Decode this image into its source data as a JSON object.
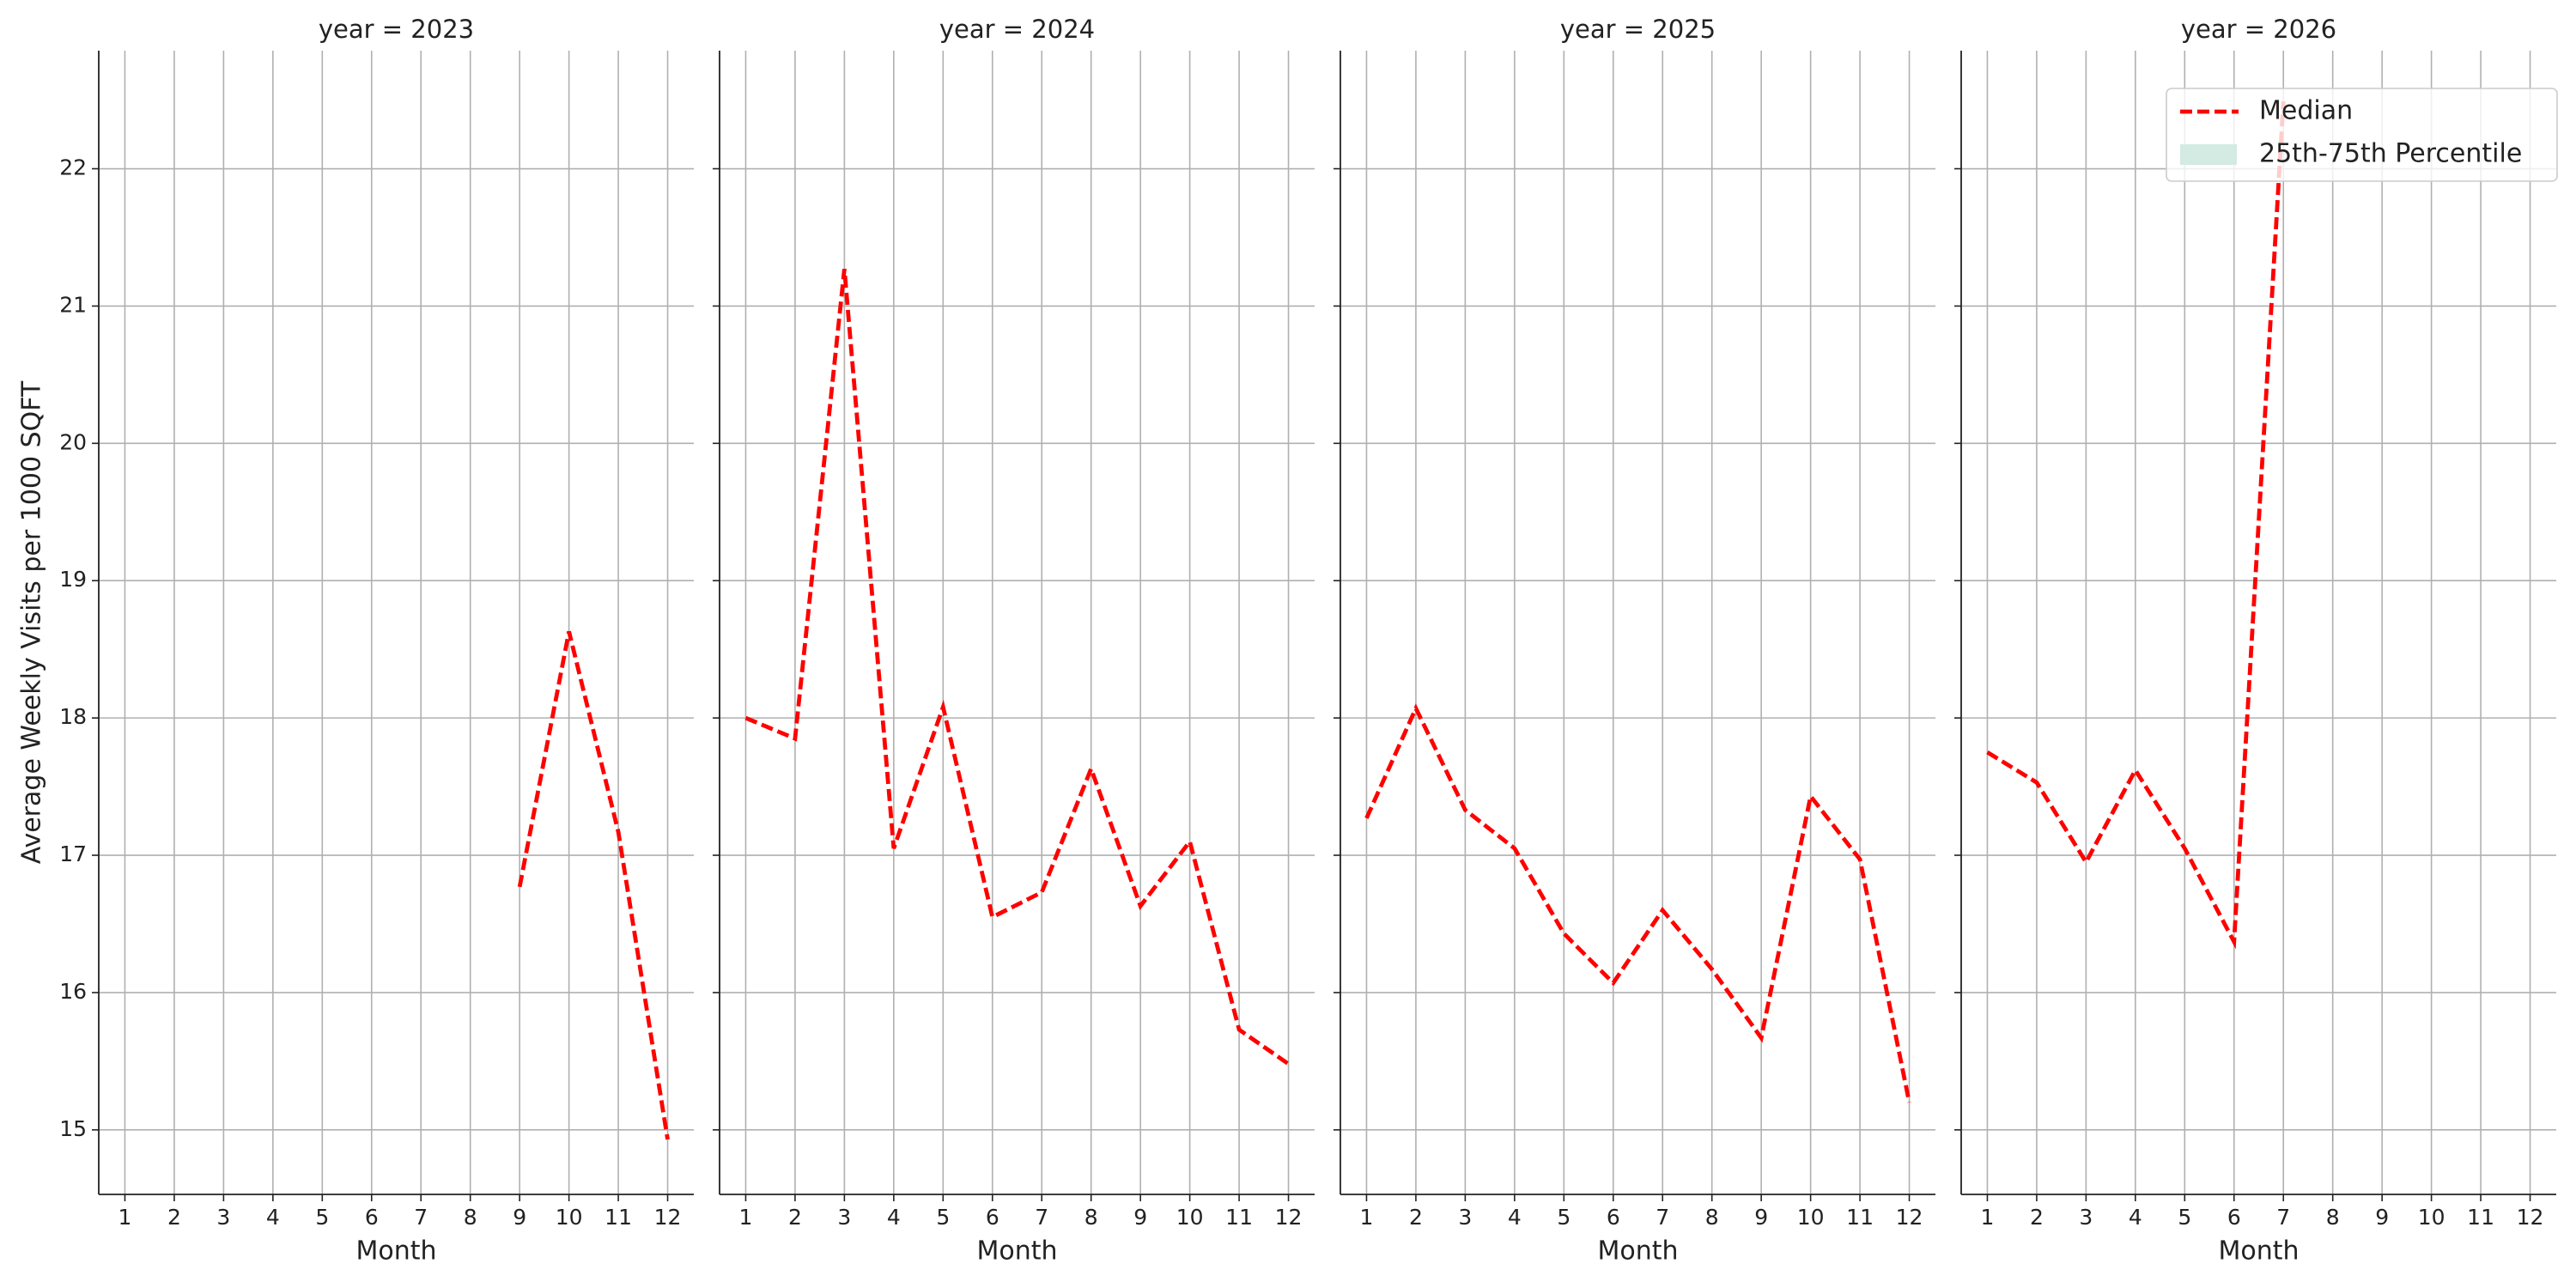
{
  "chart_data": {
    "type": "line",
    "ylabel": "Average Weekly Visits per 1000 SQFT",
    "ylim": [
      14.53,
      22.86
    ],
    "yticks": [
      15,
      16,
      17,
      18,
      19,
      20,
      21,
      22
    ],
    "xlim": [
      0.47,
      12.53
    ],
    "grid": true,
    "legend": {
      "loc": "upper right",
      "entries": [
        {
          "name": "Median",
          "color": "#ff0000"
        },
        {
          "name": "25th-75th Percentile",
          "color": "#d3ebe2"
        }
      ]
    },
    "panels": [
      {
        "title": "year = 2023",
        "xlabel": "Month",
        "x": [
          1,
          2,
          3,
          4,
          5,
          6,
          7,
          8,
          9,
          10,
          11,
          12
        ],
        "color": "#ff0000",
        "values": [
          null,
          null,
          null,
          null,
          null,
          null,
          null,
          null,
          16.77,
          18.63,
          17.17,
          14.93
        ]
      },
      {
        "title": "year = 2024",
        "xlabel": "Month",
        "x": [
          1,
          2,
          3,
          4,
          5,
          6,
          7,
          8,
          9,
          10,
          11,
          12
        ],
        "color": "#ff0000",
        "values": [
          18.0,
          17.85,
          21.27,
          17.05,
          18.08,
          16.55,
          16.73,
          17.63,
          16.63,
          17.1,
          15.73,
          15.48
        ]
      },
      {
        "title": "year = 2025",
        "xlabel": "Month",
        "x": [
          1,
          2,
          3,
          4,
          5,
          6,
          7,
          8,
          9,
          10,
          11,
          12
        ],
        "color": "#ff0000",
        "values": [
          17.27,
          18.07,
          17.33,
          17.05,
          16.43,
          16.07,
          16.6,
          16.17,
          15.67,
          17.43,
          16.97,
          15.2
        ]
      },
      {
        "title": "year = 2026",
        "xlabel": "Month",
        "x": [
          1,
          2,
          3,
          4,
          5,
          6,
          7,
          8,
          9,
          10,
          11,
          12
        ],
        "color": "#ff0000",
        "values": [
          17.75,
          17.53,
          16.95,
          17.62,
          17.05,
          16.37,
          22.49,
          null,
          null,
          null,
          null,
          null
        ]
      }
    ]
  }
}
